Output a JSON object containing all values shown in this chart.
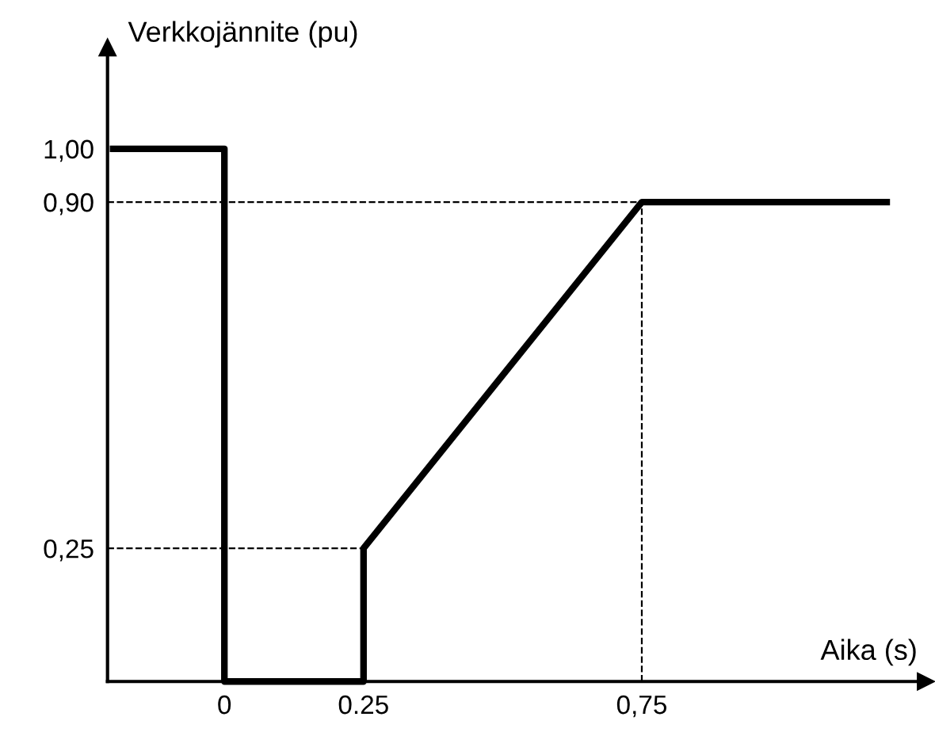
{
  "chart_data": {
    "type": "line",
    "xlabel": "Aika (s)",
    "ylabel": "Verkkojännite (pu)",
    "series": [
      {
        "color": "#000000",
        "x": [
          -0.2,
          0,
          0,
          0.25,
          0.25,
          0.75,
          1.19
        ],
        "values": [
          1,
          1,
          0,
          0,
          0.25,
          0.9,
          0.9
        ]
      }
    ],
    "xlim": [
      -0.21,
      1.26
    ],
    "ylim": [
      0,
      1.19
    ],
    "xticks": [
      0,
      {
        "value": 0.25,
        "label": "0.25"
      },
      {
        "value": 0.75,
        "label": "0,75"
      }
    ],
    "yticks": [
      {
        "value": 0.25,
        "label": "0,25"
      },
      {
        "value": 0.9,
        "label": "0,90"
      },
      {
        "value": 1,
        "label": "1,00"
      }
    ],
    "ref_lines": [
      {
        "axis": "y",
        "value": 0.9,
        "line_style": "dashed",
        "color": "#000000"
      },
      {
        "axis": "y",
        "value": 0.25,
        "line_style": "dashed",
        "color": "#000000"
      },
      {
        "axis": "x",
        "value": 0.75,
        "line_style": "dashed",
        "color": "#000000"
      }
    ],
    "grid": false,
    "legend": false,
    "marker": "none",
    "line_style": "solid"
  }
}
